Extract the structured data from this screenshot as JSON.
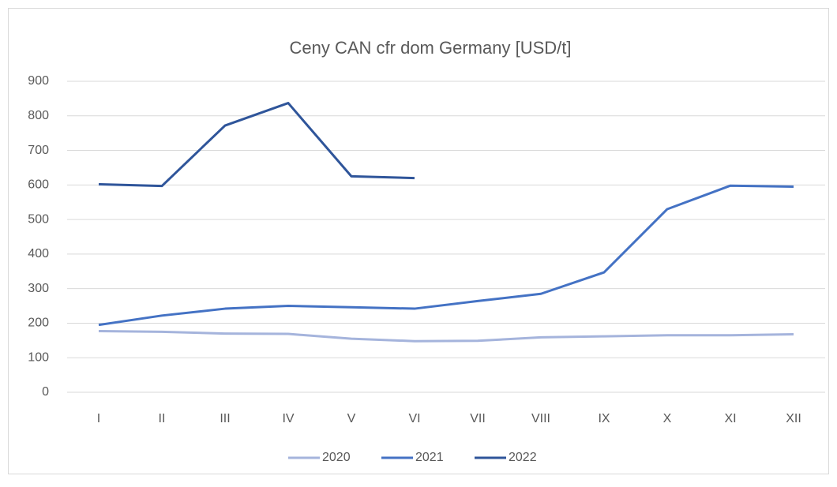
{
  "chart_data": {
    "type": "line",
    "title": "Ceny CAN cfr dom Germany [USD/t]",
    "categories": [
      "I",
      "II",
      "III",
      "IV",
      "V",
      "VI",
      "VII",
      "VIII",
      "IX",
      "X",
      "XI",
      "XII"
    ],
    "series": [
      {
        "name": "2020",
        "color": "#a5b4dc",
        "values": [
          177,
          175,
          170,
          169,
          155,
          148,
          149,
          159,
          162,
          165,
          165,
          168
        ]
      },
      {
        "name": "2021",
        "color": "#4472c4",
        "values": [
          195,
          222,
          242,
          250,
          246,
          242,
          264,
          285,
          347,
          530,
          598,
          595
        ]
      },
      {
        "name": "2022",
        "color": "#2f559a",
        "values": [
          602,
          597,
          772,
          837,
          625,
          620,
          null,
          null,
          null,
          null,
          null,
          null
        ]
      }
    ],
    "ylim": [
      0,
      900
    ],
    "yticks": [
      0,
      100,
      200,
      300,
      400,
      500,
      600,
      700,
      800,
      900
    ],
    "grid": true,
    "legend": "bottom"
  }
}
